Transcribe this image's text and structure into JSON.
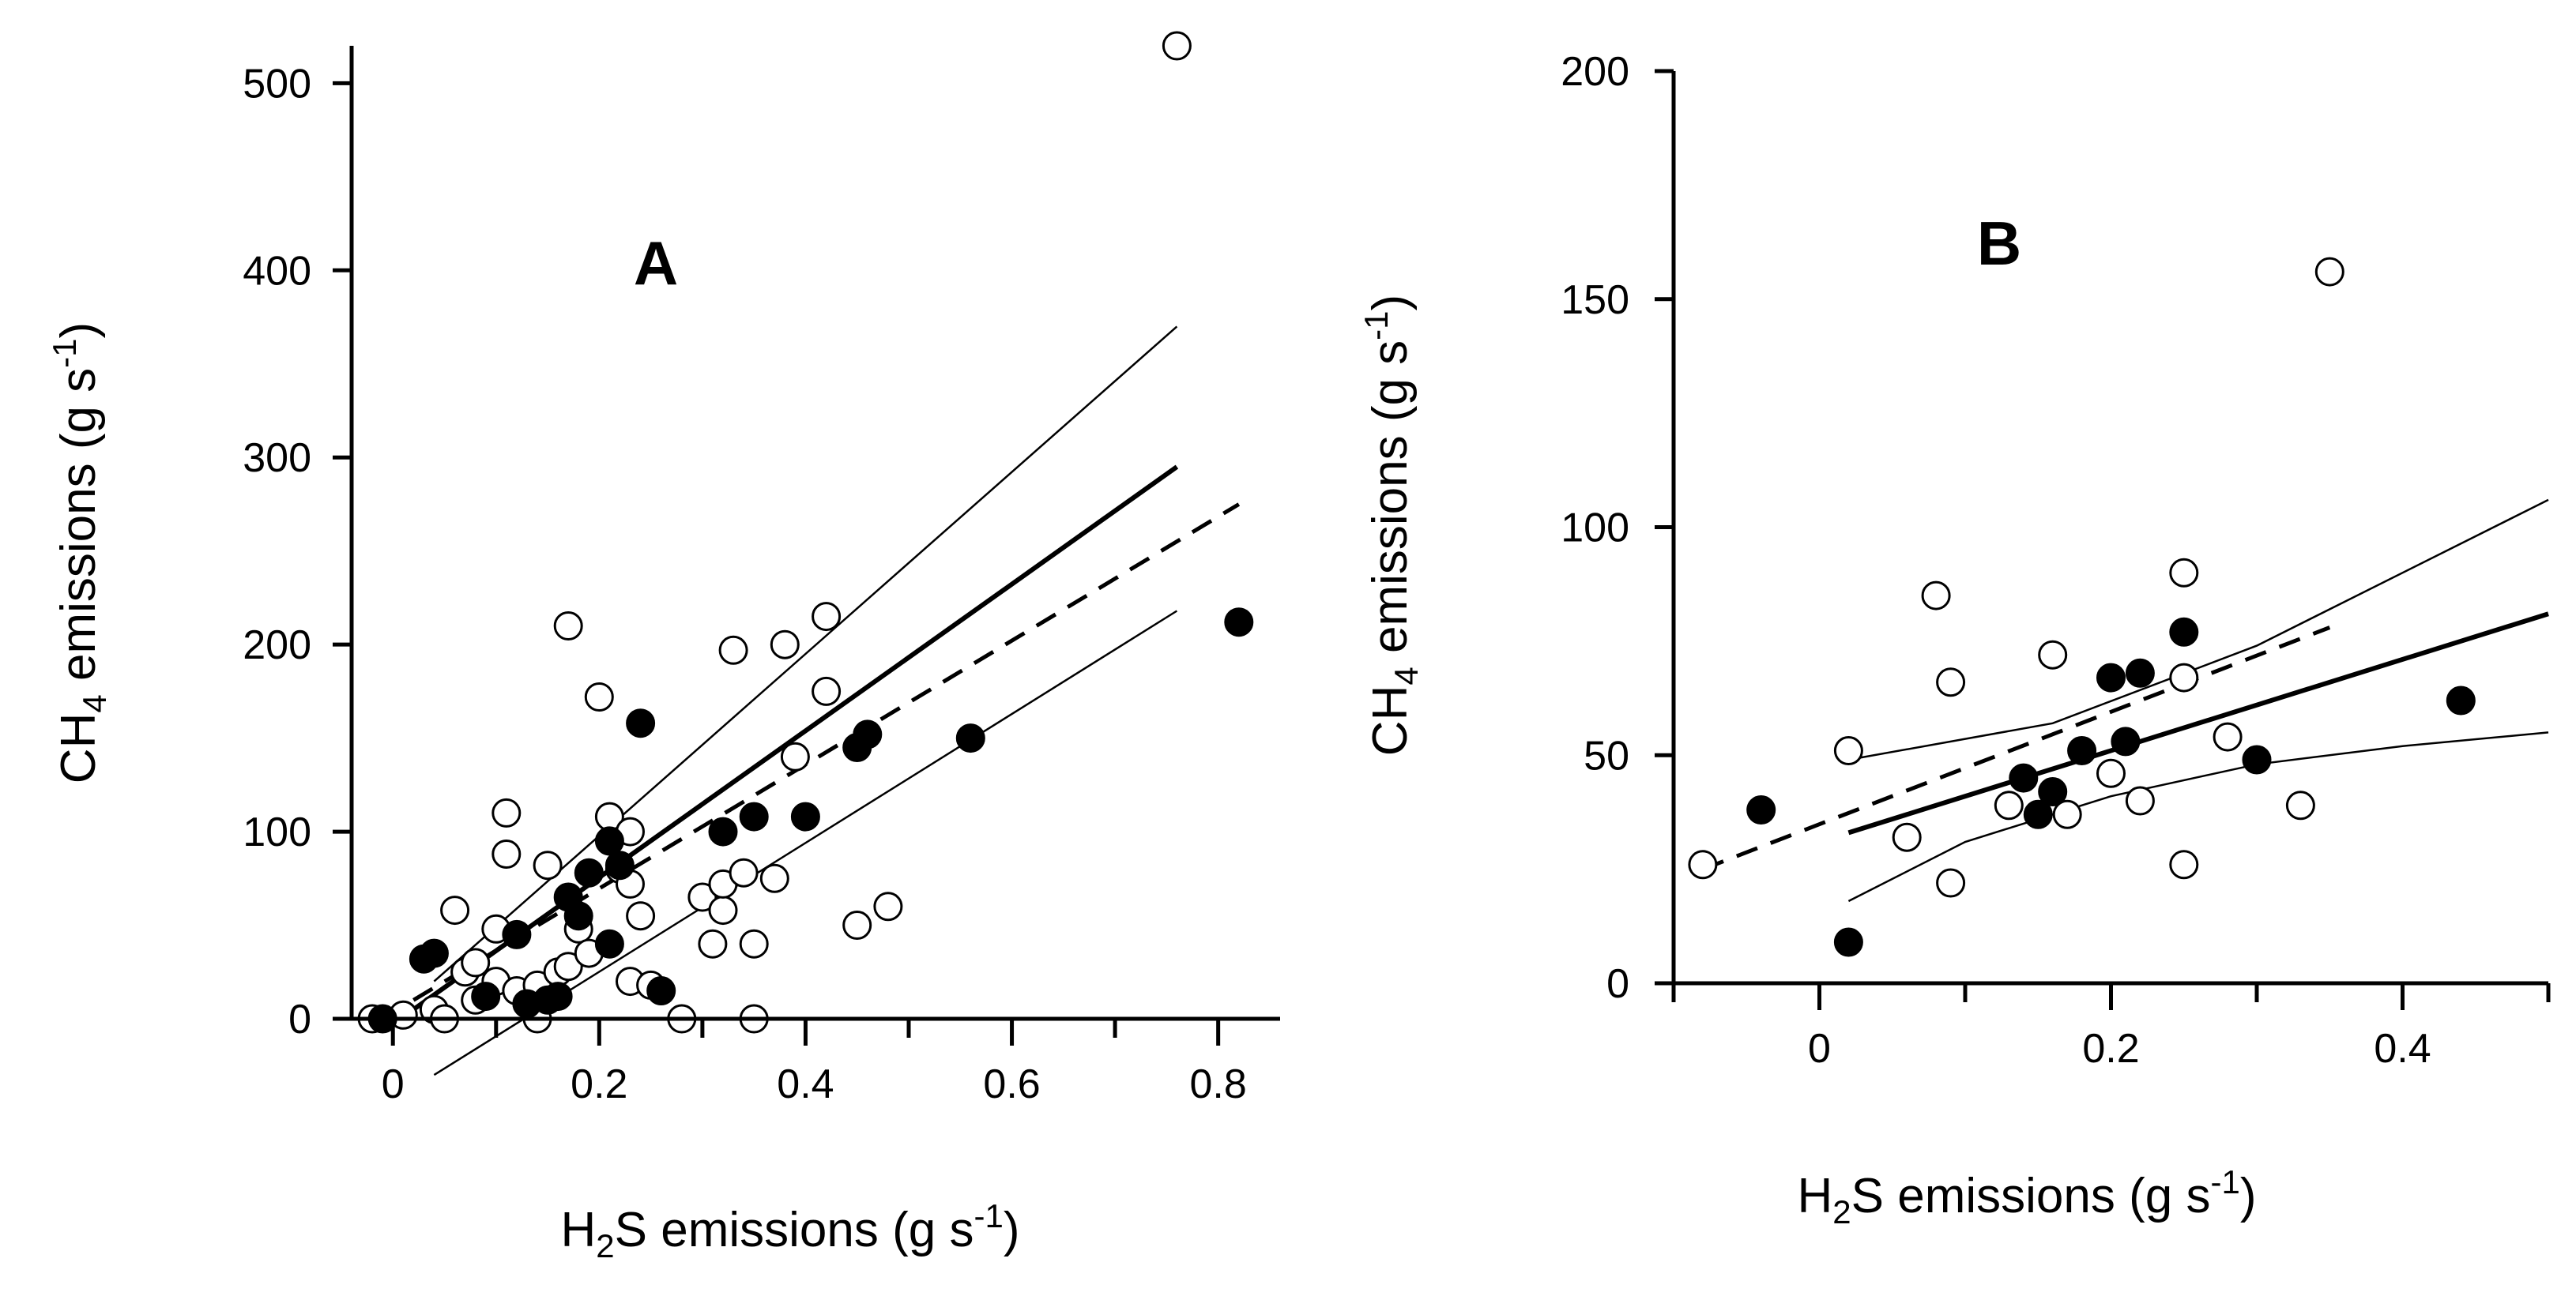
{
  "chart_data": [
    {
      "type": "scatter",
      "panel_label": "A",
      "xlabel": "H2S emissions (g s-1)",
      "ylabel": "CH4 emissions (g s-1)",
      "xlim": [
        -0.04,
        0.86
      ],
      "ylim": [
        0,
        520
      ],
      "xticks": [
        0,
        0.2,
        0.4,
        0.6,
        0.8
      ],
      "xtick_labels": [
        "0",
        "0.2",
        "0.4",
        "0.6",
        "0.8"
      ],
      "yticks": [
        0,
        100,
        200,
        300,
        400,
        500
      ],
      "ytick_labels": [
        "0",
        "100",
        "200",
        "300",
        "400",
        "500"
      ],
      "series": [
        {
          "name": "open circles",
          "marker": "open",
          "points": [
            [
              -0.02,
              0
            ],
            [
              0.01,
              2
            ],
            [
              0.04,
              5
            ],
            [
              0.05,
              0
            ],
            [
              0.06,
              58
            ],
            [
              0.07,
              25
            ],
            [
              0.08,
              10
            ],
            [
              0.08,
              30
            ],
            [
              0.1,
              48
            ],
            [
              0.11,
              110
            ],
            [
              0.11,
              88
            ],
            [
              0.1,
              20
            ],
            [
              0.12,
              15
            ],
            [
              0.14,
              0
            ],
            [
              0.14,
              18
            ],
            [
              0.15,
              82
            ],
            [
              0.16,
              25
            ],
            [
              0.17,
              210
            ],
            [
              0.17,
              28
            ],
            [
              0.18,
              48
            ],
            [
              0.19,
              35
            ],
            [
              0.2,
              172
            ],
            [
              0.21,
              108
            ],
            [
              0.22,
              80
            ],
            [
              0.23,
              100
            ],
            [
              0.23,
              72
            ],
            [
              0.24,
              55
            ],
            [
              0.23,
              20
            ],
            [
              0.25,
              18
            ],
            [
              0.28,
              0
            ],
            [
              0.3,
              65
            ],
            [
              0.31,
              40
            ],
            [
              0.32,
              58
            ],
            [
              0.32,
              72
            ],
            [
              0.33,
              197
            ],
            [
              0.34,
              78
            ],
            [
              0.35,
              40
            ],
            [
              0.35,
              0
            ],
            [
              0.37,
              75
            ],
            [
              0.38,
              200
            ],
            [
              0.39,
              140
            ],
            [
              0.42,
              215
            ],
            [
              0.42,
              175
            ],
            [
              0.45,
              50
            ],
            [
              0.48,
              60
            ],
            [
              0.76,
              520
            ]
          ]
        },
        {
          "name": "filled circles",
          "marker": "filled",
          "points": [
            [
              -0.01,
              0
            ],
            [
              0.03,
              32
            ],
            [
              0.04,
              35
            ],
            [
              0.09,
              12
            ],
            [
              0.12,
              45
            ],
            [
              0.13,
              8
            ],
            [
              0.15,
              10
            ],
            [
              0.16,
              12
            ],
            [
              0.17,
              65
            ],
            [
              0.18,
              55
            ],
            [
              0.19,
              78
            ],
            [
              0.21,
              95
            ],
            [
              0.21,
              40
            ],
            [
              0.22,
              82
            ],
            [
              0.24,
              158
            ],
            [
              0.26,
              15
            ],
            [
              0.32,
              100
            ],
            [
              0.35,
              108
            ],
            [
              0.4,
              108
            ],
            [
              0.45,
              145
            ],
            [
              0.46,
              152
            ],
            [
              0.56,
              150
            ],
            [
              0.82,
              212
            ]
          ]
        }
      ],
      "lines": [
        {
          "name": "regression fit",
          "style": "thick",
          "x": [
            0.02,
            0.76
          ],
          "y": [
            5,
            295
          ]
        },
        {
          "name": "dashed fit",
          "style": "dashed",
          "x": [
            0.02,
            0.82
          ],
          "y": [
            10,
            275
          ]
        },
        {
          "name": "upper confidence band",
          "style": "thin",
          "x": [
            0.04,
            0.76
          ],
          "y": [
            20,
            370
          ]
        },
        {
          "name": "lower confidence band",
          "style": "thin",
          "x": [
            0.04,
            0.76
          ],
          "y": [
            -30,
            218
          ]
        }
      ]
    },
    {
      "type": "scatter",
      "panel_label": "B",
      "xlabel": "H2S emissions (g s-1)",
      "ylabel": "CH4 emissions (g s-1)",
      "xlim": [
        -0.1,
        0.5
      ],
      "ylim": [
        0,
        200
      ],
      "xticks": [
        0,
        0.2,
        0.4
      ],
      "xtick_labels": [
        "0",
        "0.2",
        "0.4"
      ],
      "yticks": [
        0,
        50,
        100,
        150,
        200
      ],
      "ytick_labels": [
        "0",
        "50",
        "100",
        "150",
        "200"
      ],
      "series": [
        {
          "name": "open circles",
          "marker": "open",
          "points": [
            [
              -0.08,
              26
            ],
            [
              0.02,
              51
            ],
            [
              0.06,
              32
            ],
            [
              0.08,
              85
            ],
            [
              0.09,
              22
            ],
            [
              0.09,
              66
            ],
            [
              0.13,
              39
            ],
            [
              0.16,
              72
            ],
            [
              0.17,
              37
            ],
            [
              0.2,
              46
            ],
            [
              0.22,
              40
            ],
            [
              0.25,
              26
            ],
            [
              0.25,
              90
            ],
            [
              0.25,
              67
            ],
            [
              0.28,
              54
            ],
            [
              0.33,
              39
            ],
            [
              0.35,
              156
            ]
          ]
        },
        {
          "name": "filled circles",
          "marker": "filled",
          "points": [
            [
              -0.04,
              38
            ],
            [
              0.02,
              9
            ],
            [
              0.14,
              45
            ],
            [
              0.15,
              37
            ],
            [
              0.16,
              42
            ],
            [
              0.18,
              51
            ],
            [
              0.2,
              67
            ],
            [
              0.21,
              53
            ],
            [
              0.22,
              68
            ],
            [
              0.25,
              77
            ],
            [
              0.3,
              49
            ],
            [
              0.44,
              62
            ]
          ]
        }
      ],
      "lines": [
        {
          "name": "regression fit",
          "style": "thick",
          "x": [
            0.02,
            0.5
          ],
          "y": [
            33,
            81
          ]
        },
        {
          "name": "dashed fit",
          "style": "dashed",
          "x": [
            -0.08,
            0.35
          ],
          "y": [
            25,
            78
          ]
        },
        {
          "name": "upper confidence band",
          "style": "thin",
          "x": [
            0.02,
            0.16,
            0.3,
            0.5
          ],
          "y": [
            49,
            57,
            74,
            106
          ]
        },
        {
          "name": "lower confidence band",
          "style": "thin",
          "x": [
            0.02,
            0.1,
            0.2,
            0.3,
            0.4,
            0.5
          ],
          "y": [
            18,
            31,
            41,
            48,
            52,
            55
          ]
        }
      ]
    }
  ]
}
